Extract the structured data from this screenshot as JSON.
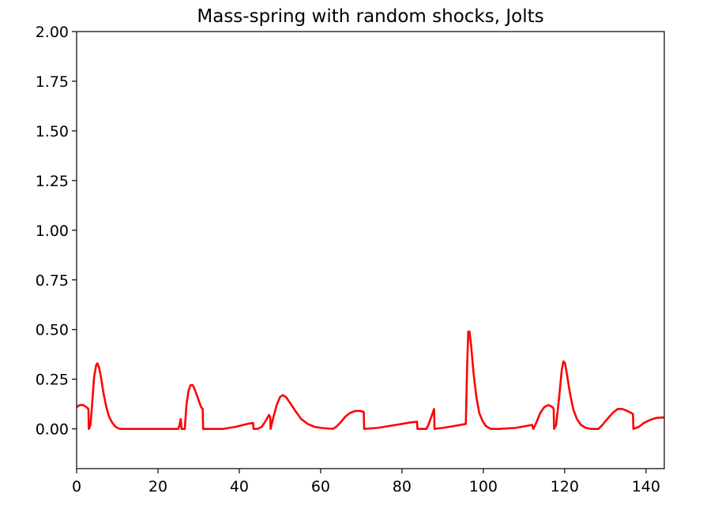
{
  "chart_data": {
    "type": "line",
    "title": "Mass-spring with random shocks, Jolts",
    "xlabel": "",
    "ylabel": "",
    "xlim": [
      0,
      144.5
    ],
    "ylim": [
      -0.2,
      2.0
    ],
    "x_ticks": [
      0,
      20,
      40,
      60,
      80,
      100,
      120,
      140
    ],
    "x_tick_labels": [
      "0",
      "20",
      "40",
      "60",
      "80",
      "100",
      "120",
      "140"
    ],
    "y_ticks": [
      0.0,
      0.25,
      0.5,
      0.75,
      1.0,
      1.25,
      1.5,
      1.75,
      2.0
    ],
    "y_tick_labels": [
      "0.00",
      "0.25",
      "0.50",
      "0.75",
      "1.00",
      "1.25",
      "1.50",
      "1.75",
      "2.00"
    ],
    "grid": false,
    "series": [
      {
        "color": "#ff0000",
        "points": [
          [
            0,
            0.11
          ],
          [
            0.8,
            0.12
          ],
          [
            1.6,
            0.12
          ],
          [
            2.4,
            0.11
          ],
          [
            2.9,
            0.1
          ],
          [
            3.0,
            0.0
          ],
          [
            3.4,
            0.02
          ],
          [
            3.8,
            0.12
          ],
          [
            4.3,
            0.26
          ],
          [
            4.8,
            0.32
          ],
          [
            5.1,
            0.33
          ],
          [
            5.5,
            0.31
          ],
          [
            6.0,
            0.26
          ],
          [
            6.6,
            0.18
          ],
          [
            7.3,
            0.11
          ],
          [
            8.0,
            0.06
          ],
          [
            8.8,
            0.03
          ],
          [
            9.6,
            0.01
          ],
          [
            10.6,
            0.0
          ],
          [
            12,
            0.0
          ],
          [
            18,
            0.0
          ],
          [
            25.0,
            0.0
          ],
          [
            25.3,
            0.02
          ],
          [
            25.6,
            0.05
          ],
          [
            25.8,
            0.0
          ],
          [
            26.6,
            0.0
          ],
          [
            27.0,
            0.12
          ],
          [
            27.5,
            0.19
          ],
          [
            28.0,
            0.22
          ],
          [
            28.6,
            0.22
          ],
          [
            29.2,
            0.19
          ],
          [
            29.9,
            0.15
          ],
          [
            30.6,
            0.11
          ],
          [
            31.0,
            0.1
          ],
          [
            31.1,
            0.0
          ],
          [
            36,
            0.0
          ],
          [
            39,
            0.01
          ],
          [
            42,
            0.025
          ],
          [
            43.4,
            0.03
          ],
          [
            43.5,
            0.0
          ],
          [
            44.5,
            0.0
          ],
          [
            45.5,
            0.01
          ],
          [
            46.5,
            0.04
          ],
          [
            47.3,
            0.07
          ],
          [
            47.6,
            0.06
          ],
          [
            47.7,
            0.0
          ],
          [
            48.4,
            0.06
          ],
          [
            49.2,
            0.12
          ],
          [
            50.0,
            0.16
          ],
          [
            50.7,
            0.17
          ],
          [
            51.5,
            0.16
          ],
          [
            52.5,
            0.13
          ],
          [
            53.8,
            0.09
          ],
          [
            55.2,
            0.05
          ],
          [
            56.8,
            0.025
          ],
          [
            58.5,
            0.01
          ],
          [
            60.5,
            0.004
          ],
          [
            63.0,
            0.0
          ],
          [
            63.8,
            0.01
          ],
          [
            64.8,
            0.03
          ],
          [
            66.0,
            0.06
          ],
          [
            67.2,
            0.08
          ],
          [
            68.5,
            0.09
          ],
          [
            69.8,
            0.09
          ],
          [
            70.6,
            0.085
          ],
          [
            70.7,
            0.0
          ],
          [
            74,
            0.005
          ],
          [
            77,
            0.015
          ],
          [
            80,
            0.025
          ],
          [
            82,
            0.032
          ],
          [
            83.7,
            0.036
          ],
          [
            83.8,
            0.0
          ],
          [
            84.8,
            0.0
          ],
          [
            86.0,
            0.0
          ],
          [
            86.5,
            0.02
          ],
          [
            87.2,
            0.06
          ],
          [
            87.9,
            0.1
          ],
          [
            88.0,
            0.0
          ],
          [
            90,
            0.005
          ],
          [
            93,
            0.015
          ],
          [
            95.7,
            0.025
          ],
          [
            96.0,
            0.3
          ],
          [
            96.3,
            0.49
          ],
          [
            96.6,
            0.49
          ],
          [
            97.0,
            0.42
          ],
          [
            97.6,
            0.28
          ],
          [
            98.3,
            0.16
          ],
          [
            99.0,
            0.08
          ],
          [
            99.8,
            0.04
          ],
          [
            100.6,
            0.015
          ],
          [
            101.8,
            0.0
          ],
          [
            104,
            0.0
          ],
          [
            108,
            0.005
          ],
          [
            112,
            0.02
          ],
          [
            112.3,
            0.0
          ],
          [
            113.0,
            0.03
          ],
          [
            114.0,
            0.08
          ],
          [
            115.0,
            0.11
          ],
          [
            116.0,
            0.12
          ],
          [
            117.0,
            0.11
          ],
          [
            117.3,
            0.1
          ],
          [
            117.4,
            0.0
          ],
          [
            117.9,
            0.02
          ],
          [
            118.6,
            0.15
          ],
          [
            119.3,
            0.3
          ],
          [
            119.7,
            0.34
          ],
          [
            120.1,
            0.33
          ],
          [
            120.6,
            0.27
          ],
          [
            121.3,
            0.18
          ],
          [
            122.1,
            0.1
          ],
          [
            123.0,
            0.05
          ],
          [
            124.0,
            0.02
          ],
          [
            125.2,
            0.005
          ],
          [
            126.5,
            0.0
          ],
          [
            128.3,
            0.0
          ],
          [
            129.3,
            0.02
          ],
          [
            130.5,
            0.05
          ],
          [
            131.8,
            0.08
          ],
          [
            133.0,
            0.1
          ],
          [
            134.2,
            0.1
          ],
          [
            135.4,
            0.09
          ],
          [
            136.4,
            0.08
          ],
          [
            136.8,
            0.075
          ],
          [
            136.9,
            0.0
          ],
          [
            138.2,
            0.01
          ],
          [
            139.5,
            0.03
          ],
          [
            141.0,
            0.045
          ],
          [
            142.5,
            0.055
          ],
          [
            144.5,
            0.058
          ]
        ]
      }
    ]
  }
}
